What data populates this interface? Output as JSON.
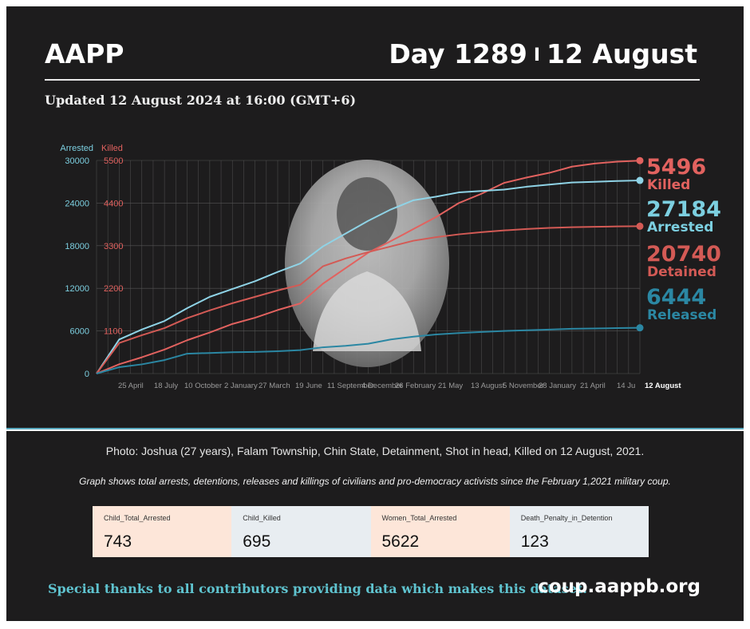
{
  "header": {
    "brand": "AAPP",
    "day": "Day 1289",
    "separator": "I",
    "date": "12 August",
    "updated": "Updated 12 August 2024 at 16:00 (GMT+6)"
  },
  "chart_data": {
    "type": "line",
    "left_axis": {
      "label": "Arrested",
      "ticks": [
        0,
        6000,
        12000,
        18000,
        24000,
        30000
      ],
      "range": [
        0,
        30000
      ],
      "color": "#7ccfe0"
    },
    "right_axis": {
      "label": "Killed",
      "ticks": [
        0,
        1100,
        2200,
        3300,
        4400,
        5500
      ],
      "range": [
        0,
        5500
      ],
      "color": "#e2625f"
    },
    "x_tick_labels": [
      "25 April",
      "18 July",
      "10 October",
      "2 January",
      "27 March",
      "19 June",
      "11 September",
      "4 December",
      "26 February",
      "21 May",
      "13 August",
      "5 November",
      "28 January",
      "21 April",
      "14 Ju",
      "12 August"
    ],
    "grid": true,
    "series": [
      {
        "name": "Killed",
        "axis": "right",
        "color": "#e2625f",
        "final": 5496,
        "points": [
          [
            0,
            0
          ],
          [
            50,
            240
          ],
          [
            100,
            420
          ],
          [
            150,
            620
          ],
          [
            200,
            860
          ],
          [
            250,
            1060
          ],
          [
            300,
            1280
          ],
          [
            350,
            1440
          ],
          [
            400,
            1640
          ],
          [
            450,
            1810
          ],
          [
            500,
            2320
          ],
          [
            550,
            2720
          ],
          [
            600,
            3120
          ],
          [
            650,
            3420
          ],
          [
            700,
            3730
          ],
          [
            750,
            4040
          ],
          [
            800,
            4400
          ],
          [
            850,
            4640
          ],
          [
            900,
            4920
          ],
          [
            950,
            5060
          ],
          [
            1000,
            5180
          ],
          [
            1050,
            5340
          ],
          [
            1100,
            5420
          ],
          [
            1150,
            5470
          ],
          [
            1200,
            5496
          ]
        ]
      },
      {
        "name": "Arrested",
        "axis": "left",
        "color": "#8fd3e6",
        "final": 27184,
        "points": [
          [
            0,
            0
          ],
          [
            50,
            4800
          ],
          [
            100,
            6200
          ],
          [
            150,
            7400
          ],
          [
            200,
            9200
          ],
          [
            250,
            10800
          ],
          [
            300,
            11900
          ],
          [
            350,
            13000
          ],
          [
            400,
            14300
          ],
          [
            450,
            15500
          ],
          [
            500,
            17900
          ],
          [
            550,
            19700
          ],
          [
            600,
            21500
          ],
          [
            650,
            23100
          ],
          [
            700,
            24400
          ],
          [
            750,
            24900
          ],
          [
            800,
            25500
          ],
          [
            850,
            25700
          ],
          [
            900,
            25900
          ],
          [
            950,
            26300
          ],
          [
            1000,
            26600
          ],
          [
            1050,
            26900
          ],
          [
            1100,
            27000
          ],
          [
            1150,
            27100
          ],
          [
            1200,
            27184
          ]
        ]
      },
      {
        "name": "Detained",
        "axis": "left",
        "color": "#d35a55",
        "final": 20740,
        "points": [
          [
            0,
            0
          ],
          [
            50,
            4300
          ],
          [
            100,
            5400
          ],
          [
            150,
            6400
          ],
          [
            200,
            7800
          ],
          [
            250,
            8900
          ],
          [
            300,
            9900
          ],
          [
            350,
            10800
          ],
          [
            400,
            11700
          ],
          [
            450,
            12500
          ],
          [
            500,
            15100
          ],
          [
            550,
            16200
          ],
          [
            600,
            17100
          ],
          [
            650,
            17900
          ],
          [
            700,
            18700
          ],
          [
            750,
            19200
          ],
          [
            800,
            19600
          ],
          [
            850,
            19900
          ],
          [
            900,
            20150
          ],
          [
            950,
            20350
          ],
          [
            1000,
            20500
          ],
          [
            1050,
            20600
          ],
          [
            1100,
            20660
          ],
          [
            1150,
            20710
          ],
          [
            1200,
            20740
          ]
        ]
      },
      {
        "name": "Released",
        "axis": "left",
        "color": "#2b87a3",
        "final": 6444,
        "points": [
          [
            0,
            0
          ],
          [
            50,
            900
          ],
          [
            100,
            1300
          ],
          [
            150,
            1900
          ],
          [
            200,
            2800
          ],
          [
            250,
            2900
          ],
          [
            300,
            3000
          ],
          [
            350,
            3050
          ],
          [
            400,
            3150
          ],
          [
            450,
            3300
          ],
          [
            500,
            3700
          ],
          [
            550,
            3900
          ],
          [
            600,
            4200
          ],
          [
            650,
            4800
          ],
          [
            700,
            5200
          ],
          [
            750,
            5500
          ],
          [
            800,
            5700
          ],
          [
            850,
            5850
          ],
          [
            900,
            6000
          ],
          [
            950,
            6100
          ],
          [
            1000,
            6200
          ],
          [
            1050,
            6300
          ],
          [
            1100,
            6350
          ],
          [
            1150,
            6400
          ],
          [
            1200,
            6444
          ]
        ]
      }
    ],
    "labels": [
      {
        "value": "5496",
        "text": "Killed",
        "color": "#e2625f"
      },
      {
        "value": "27184",
        "text": "Arrested",
        "color": "#7ccfe0"
      },
      {
        "value": "20740",
        "text": "Detained",
        "color": "#d35a55"
      },
      {
        "value": "6444",
        "text": "Released",
        "color": "#2b87a3"
      }
    ]
  },
  "caption": "Photo: Joshua (27 years), Falam Township, Chin State, Detainment, Shot in head, Killed on 12 August, 2021.",
  "note": "Graph shows total arrests, detentions, releases and killings of civilians and pro-democracy activists since the February 1,2021 military coup.",
  "kpis": [
    {
      "label": "Child_Total_Arrested",
      "value": "743",
      "bg": "#fde6d9"
    },
    {
      "label": "Child_Killed",
      "value": "695",
      "bg": "#e8edf1"
    },
    {
      "label": "Women_Total_Arrested",
      "value": "5622",
      "bg": "#fde6d9"
    },
    {
      "label": "Death_Penalty_in_Detention",
      "value": "123",
      "bg": "#e8edf1"
    }
  ],
  "footer": {
    "thanks": "Special thanks to all contributors providing data which makes this dataset.",
    "url": "coup.aappb.org"
  }
}
